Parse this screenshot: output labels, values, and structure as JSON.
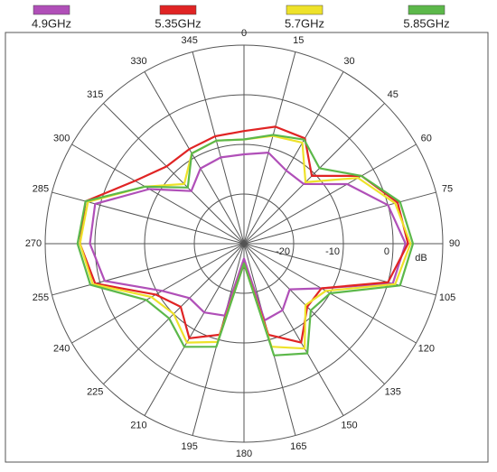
{
  "chart_data": {
    "type": "polar",
    "theta": [
      0,
      15,
      30,
      45,
      60,
      75,
      90,
      105,
      120,
      135,
      150,
      165,
      180,
      195,
      210,
      225,
      240,
      255,
      270,
      285,
      300,
      315,
      330,
      345
    ],
    "series": [
      {
        "name": "4.9GHz",
        "color": "#b04fb8",
        "values": [
          -12,
          -11,
          -13,
          -13,
          -6,
          0,
          2.5,
          1,
          -12,
          -17,
          -14.5,
          -14,
          -27,
          -15,
          -14,
          -14.5,
          -11,
          -1,
          1,
          1,
          -8,
          -15,
          -12.5,
          -12
        ]
      },
      {
        "name": "5.35GHz",
        "color": "#e02424",
        "values": [
          -7.3,
          -5.6,
          -5.5,
          -10.7,
          -2.7,
          2,
          3,
          0,
          -12,
          -12,
          -7,
          -11,
          -26,
          -11,
          -8,
          -12,
          -9.5,
          1,
          3,
          3,
          -4.7,
          -8,
          -8,
          -7.6
        ]
      },
      {
        "name": "5.7GHz",
        "color": "#eee22a",
        "values": [
          -9,
          -7.5,
          -6.5,
          -12.5,
          -3.5,
          1.5,
          3.5,
          1.5,
          -11,
          -12.5,
          -5.6,
          -8.5,
          -26,
          -9.5,
          -7,
          -10,
          -8.5,
          1.5,
          3,
          2.5,
          -7,
          -13,
          -9,
          -8.5
        ]
      },
      {
        "name": "5.85GHz",
        "color": "#5cb84a",
        "values": [
          -9,
          -7.3,
          -5.8,
          -8.5,
          -2.7,
          2.5,
          4,
          2.5,
          -10,
          -11,
          -4.5,
          -6.7,
          -26,
          -8.5,
          -6,
          -8.7,
          -7.3,
          2,
          3.5,
          3,
          -7,
          -14,
          -9,
          -8.5
        ]
      }
    ],
    "thetaticks": [
      0,
      15,
      30,
      45,
      60,
      75,
      90,
      105,
      120,
      135,
      150,
      165,
      180,
      195,
      210,
      225,
      240,
      255,
      270,
      285,
      300,
      315,
      330,
      345
    ],
    "rlim": [
      -30,
      10
    ],
    "rticks": [
      -20,
      -10,
      0
    ],
    "rlabel": "dB"
  }
}
